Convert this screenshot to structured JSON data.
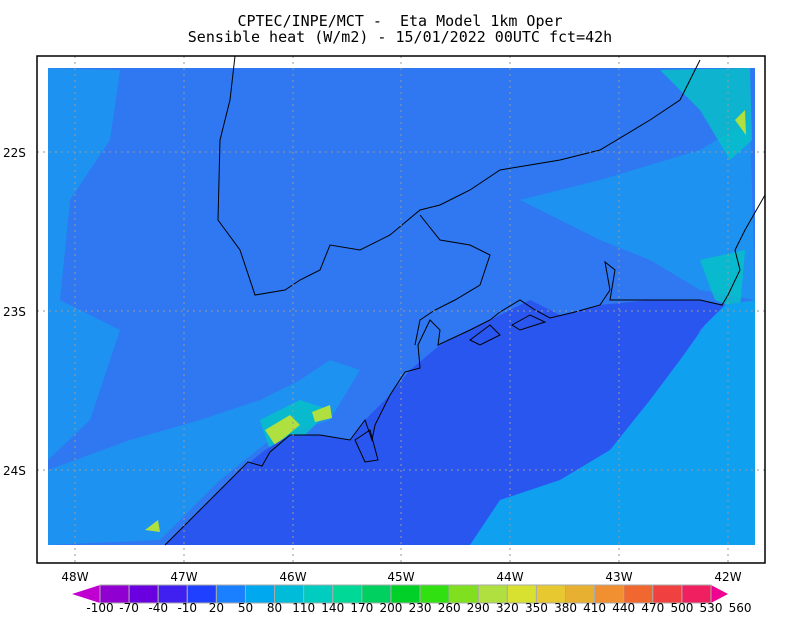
{
  "title": {
    "line1": "CPTEC/INPE/MCT -  Eta Model 1km Oper",
    "line2": "Sensible heat (W/m2) - 15/01/2022 00UTC fct=42h"
  },
  "map": {
    "lon_ticks": [
      "48W",
      "47W",
      "46W",
      "45W",
      "44W",
      "43W",
      "42W"
    ],
    "lat_ticks": [
      "22S",
      "23S",
      "24S"
    ],
    "field_colors": {
      "land": "#2f78f2",
      "land_high": "#10a8f0",
      "land_warm": "#00ccc0",
      "ocean_near": "#2a56f0",
      "ocean_far": "#10a0f0",
      "hotspot": "#b0e040"
    }
  },
  "colorbar": {
    "labels": [
      "-100",
      "-70",
      "-40",
      "-10",
      "20",
      "50",
      "80",
      "110",
      "140",
      "170",
      "200",
      "230",
      "260",
      "290",
      "320",
      "350",
      "380",
      "410",
      "440",
      "470",
      "500",
      "530",
      "560"
    ],
    "colors": [
      "#9000d0",
      "#6a00e0",
      "#4020f0",
      "#2040ff",
      "#1a80ff",
      "#00a8f0",
      "#00bcd8",
      "#00ccc0",
      "#00d898",
      "#00d060",
      "#00d028",
      "#30e010",
      "#80e020",
      "#b0e040",
      "#d8e030",
      "#e8c830",
      "#e8b030",
      "#f09030",
      "#f06830",
      "#f04040",
      "#f02060"
    ],
    "under_color": "#c000d0",
    "over_color": "#f00090"
  }
}
